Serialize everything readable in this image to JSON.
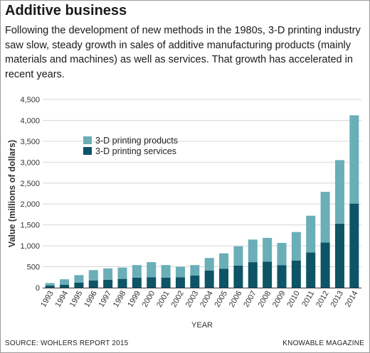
{
  "title": "Additive business",
  "subtitle": "Following the development of new methods in the 1980s, 3-D printing industry saw slow, steady growth in sales of additive manufacturing products (mainly materials and machines) as well as services. That growth has accelerated in recent years.",
  "source": "SOURCE: WOHLERS REPORT 2015",
  "credit": "KNOWABLE MAGAZINE",
  "colors": {
    "products": "#6aaeb8",
    "services": "#0d5466",
    "grid": "#d6d6d6",
    "axis": "#333333"
  },
  "chart_data": {
    "type": "bar",
    "stacked": true,
    "xlabel": "YEAR",
    "ylabel": "Value (millions of dollars)",
    "ylim": [
      0,
      4500
    ],
    "yticks": [
      0,
      500,
      1000,
      1500,
      2000,
      2500,
      3000,
      3500,
      4000,
      4500
    ],
    "ytick_labels": [
      "0",
      "500",
      "1,000",
      "1,500",
      "2,000",
      "2,500",
      "3,000",
      "3,500",
      "4,000",
      "4,500"
    ],
    "grid": true,
    "legend_position": "upper-left",
    "categories": [
      "1993",
      "1994",
      "1995",
      "1996",
      "1997",
      "1998",
      "1999",
      "2000",
      "2001",
      "2002",
      "2003",
      "2004",
      "2005",
      "2006",
      "2007",
      "2008",
      "2009",
      "2010",
      "2011",
      "2012",
      "2013",
      "2014"
    ],
    "series": [
      {
        "name": "3-D printing services",
        "values": [
          50,
          70,
          120,
          170,
          190,
          210,
          240,
          250,
          240,
          250,
          290,
          410,
          450,
          530,
          610,
          620,
          540,
          650,
          840,
          1080,
          1530,
          2010
        ]
      },
      {
        "name": "3-D printing products",
        "values": [
          60,
          130,
          180,
          250,
          270,
          270,
          300,
          360,
          300,
          250,
          250,
          300,
          370,
          460,
          540,
          570,
          530,
          680,
          880,
          1210,
          1520,
          2110
        ]
      }
    ],
    "legend_order": [
      "3-D printing products",
      "3-D printing services"
    ]
  }
}
